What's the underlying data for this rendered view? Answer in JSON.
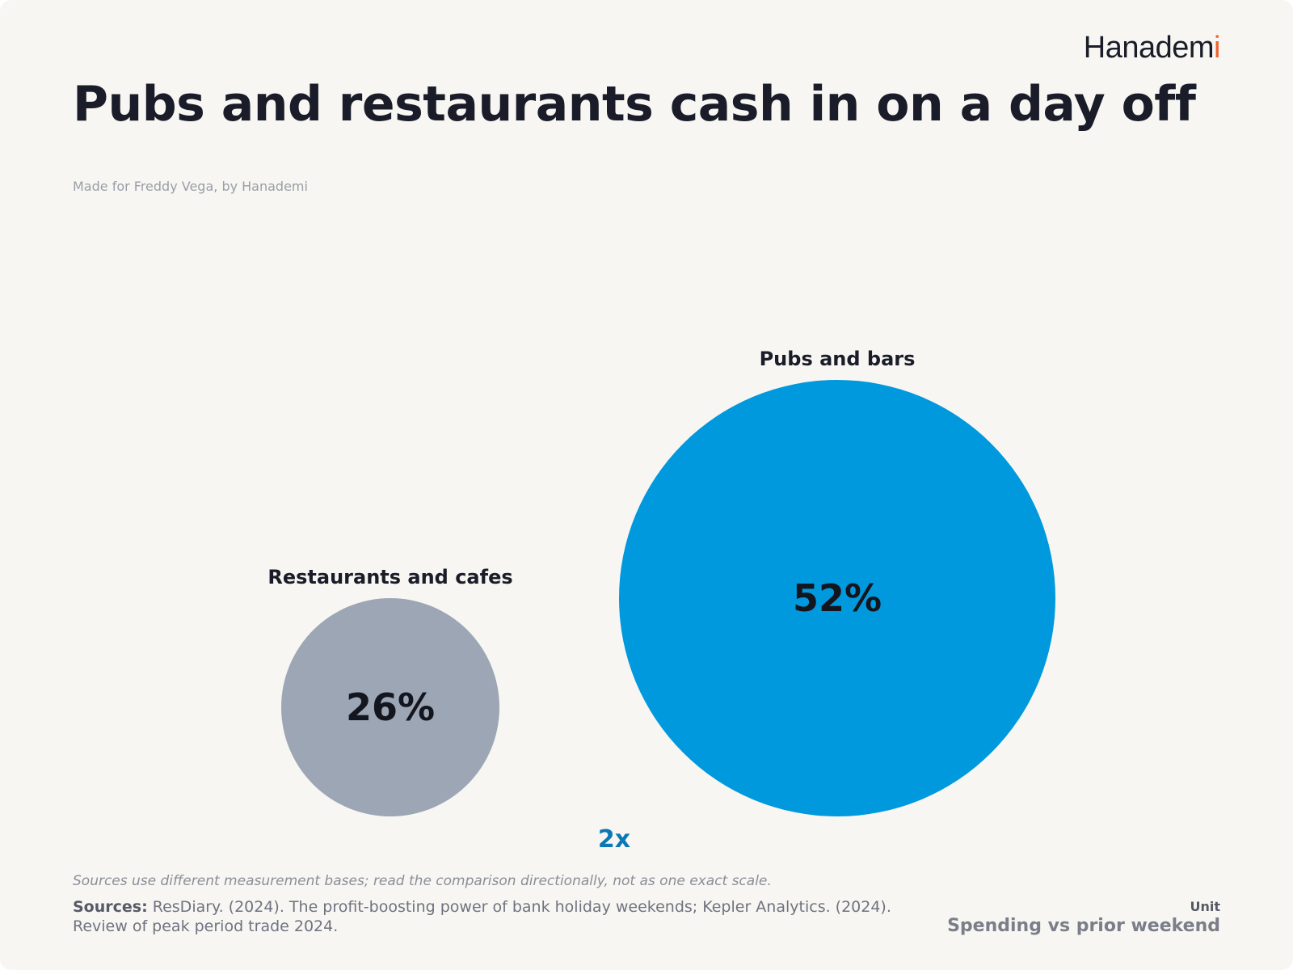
{
  "brand": {
    "name_main": "Hanadem",
    "name_accent": "i"
  },
  "header": {
    "title": "Pubs and restaurants cash in on a day off",
    "subtitle": "Made for Freddy Vega, by Hanademi"
  },
  "chart_data": {
    "type": "bubble",
    "title": "Pubs and restaurants cash in on a day off",
    "categories": [
      "Restaurants and cafes",
      "Pubs and bars"
    ],
    "values": [
      26,
      52
    ],
    "value_labels": [
      "26%",
      "52%"
    ],
    "colors": [
      "#9ca6b4",
      "#0099dd"
    ],
    "comparison_label": "2x",
    "comparison_color": "#0a78b4",
    "unit": "%"
  },
  "footer": {
    "note": "Sources use different measurement bases; read the comparison directionally, not as one exact scale.",
    "sources_label": "Sources:",
    "sources_text": "ResDiary. (2024). The profit-boosting power of bank holiday weekends; Kepler Analytics. (2024). Review of peak period trade 2024.",
    "unit_label": "Unit",
    "unit_value": "Spending vs prior weekend"
  }
}
